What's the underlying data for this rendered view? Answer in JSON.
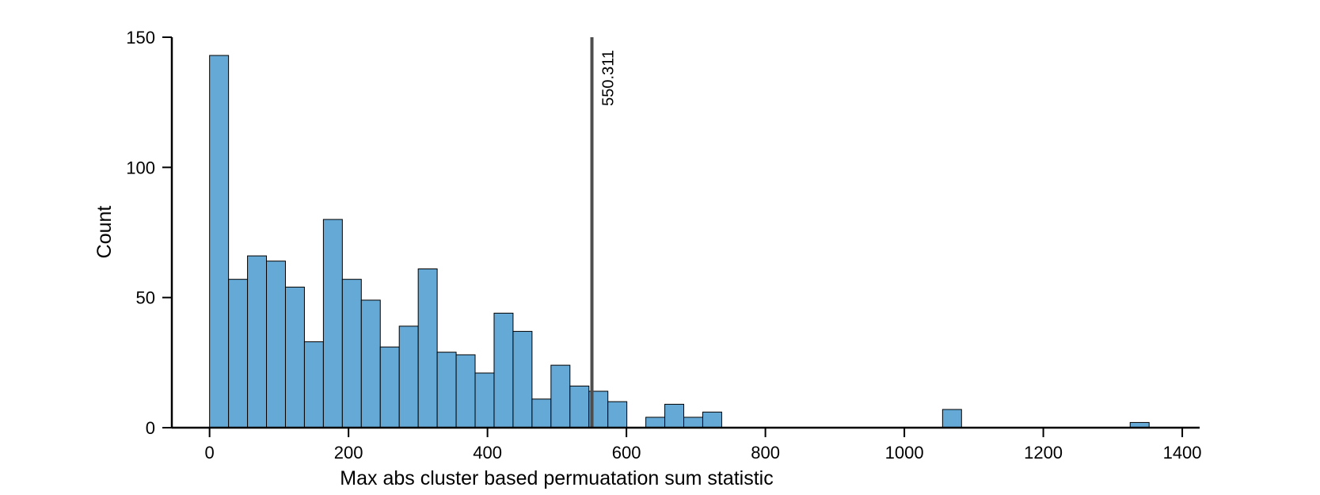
{
  "chart_data": {
    "type": "bar",
    "title": "",
    "xlabel": "Max abs cluster based permuatation sum statistic",
    "ylabel": "Count",
    "xlim": [
      -68,
      1425
    ],
    "ylim": [
      0,
      150
    ],
    "x_ticks": [
      0,
      200,
      400,
      600,
      800,
      1000,
      1200,
      1400
    ],
    "y_ticks": [
      0,
      50,
      100,
      150
    ],
    "bin_width": 27.3,
    "bar_color": "#65a9d7",
    "bars": [
      {
        "x0": 0.0,
        "x1": 27.3,
        "count": 143
      },
      {
        "x0": 27.3,
        "x1": 54.6,
        "count": 57
      },
      {
        "x0": 54.6,
        "x1": 81.9,
        "count": 66
      },
      {
        "x0": 81.9,
        "x1": 109.2,
        "count": 64
      },
      {
        "x0": 109.2,
        "x1": 136.5,
        "count": 54
      },
      {
        "x0": 136.5,
        "x1": 163.8,
        "count": 33
      },
      {
        "x0": 163.8,
        "x1": 191.1,
        "count": 80
      },
      {
        "x0": 191.1,
        "x1": 218.4,
        "count": 57
      },
      {
        "x0": 218.4,
        "x1": 245.7,
        "count": 49
      },
      {
        "x0": 245.7,
        "x1": 273.0,
        "count": 31
      },
      {
        "x0": 273.0,
        "x1": 300.3,
        "count": 39
      },
      {
        "x0": 300.3,
        "x1": 327.6,
        "count": 61
      },
      {
        "x0": 327.6,
        "x1": 354.9,
        "count": 29
      },
      {
        "x0": 354.9,
        "x1": 382.2,
        "count": 28
      },
      {
        "x0": 382.2,
        "x1": 409.5,
        "count": 21
      },
      {
        "x0": 409.5,
        "x1": 436.8,
        "count": 44
      },
      {
        "x0": 436.8,
        "x1": 464.1,
        "count": 37
      },
      {
        "x0": 464.1,
        "x1": 491.4,
        "count": 11
      },
      {
        "x0": 491.4,
        "x1": 518.7,
        "count": 24
      },
      {
        "x0": 518.7,
        "x1": 546.0,
        "count": 16
      },
      {
        "x0": 546.0,
        "x1": 573.3,
        "count": 14
      },
      {
        "x0": 573.3,
        "x1": 600.6,
        "count": 10
      },
      {
        "x0": 627.9,
        "x1": 655.2,
        "count": 4
      },
      {
        "x0": 655.2,
        "x1": 682.5,
        "count": 9
      },
      {
        "x0": 682.5,
        "x1": 709.8,
        "count": 4
      },
      {
        "x0": 709.8,
        "x1": 737.1,
        "count": 6
      },
      {
        "x0": 1055.0,
        "x1": 1082.3,
        "count": 7
      },
      {
        "x0": 1325.0,
        "x1": 1352.3,
        "count": 2
      }
    ],
    "reference_line": {
      "x": 550.311,
      "label": "550.311",
      "color": "#4d4d4d"
    },
    "grid": false,
    "legend": "none"
  }
}
